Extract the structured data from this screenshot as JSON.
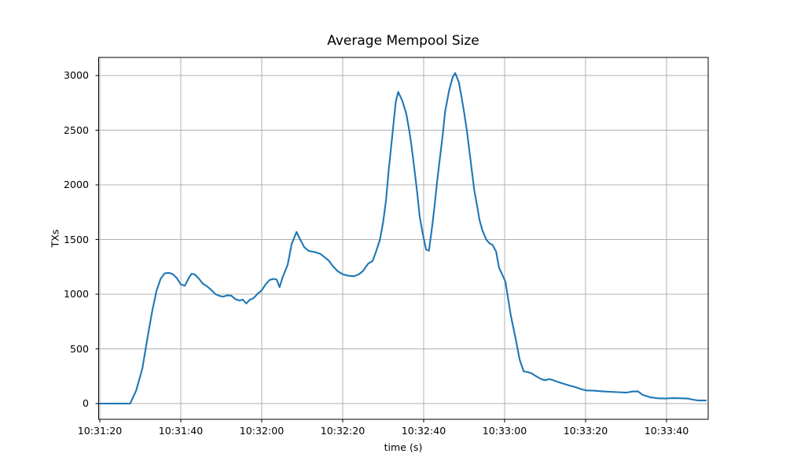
{
  "figure": {
    "title": "Average Mempool Size",
    "xlabel": "time (s)",
    "ylabel": "TXs"
  },
  "chart_data": {
    "type": "line",
    "title": "Average Mempool Size",
    "xlabel": "time (s)",
    "ylabel": "TXs",
    "grid": true,
    "legend_position": "none",
    "line_color": "#1f77b4",
    "grid_color": "#b0b0b0",
    "background_color": "#ffffff",
    "x_axis": {
      "tick_labels": [
        "10:31:20",
        "10:31:40",
        "10:32:00",
        "10:32:20",
        "10:32:40",
        "10:33:00",
        "10:33:20",
        "10:33:40"
      ],
      "tick_seconds_after_start": [
        0,
        20,
        40,
        60,
        80,
        100,
        120,
        140
      ],
      "range_seconds_after_start": [
        -0.4,
        150.3
      ],
      "start_time": "10:31:20"
    },
    "y_axis": {
      "ticks": [
        0,
        500,
        1000,
        1500,
        2000,
        2500,
        3000
      ],
      "range": [
        -150,
        3170
      ]
    },
    "series": [
      {
        "name": "average mempool size",
        "color": "#1f77b4",
        "points_seconds_vs_txs": [
          [
            -0.4,
            0
          ],
          [
            2,
            0
          ],
          [
            4,
            0
          ],
          [
            6,
            0
          ],
          [
            7.5,
            0
          ],
          [
            9,
            120
          ],
          [
            10.5,
            320
          ],
          [
            12,
            650
          ],
          [
            13,
            855
          ],
          [
            14,
            1030
          ],
          [
            15,
            1140
          ],
          [
            16,
            1190
          ],
          [
            17,
            1196
          ],
          [
            18,
            1184
          ],
          [
            19,
            1148
          ],
          [
            20,
            1090
          ],
          [
            21,
            1078
          ],
          [
            22,
            1150
          ],
          [
            22.7,
            1188
          ],
          [
            23.5,
            1180
          ],
          [
            24.5,
            1140
          ],
          [
            25.5,
            1095
          ],
          [
            26.5,
            1072
          ],
          [
            27.5,
            1040
          ],
          [
            28.5,
            1002
          ],
          [
            29.5,
            985
          ],
          [
            30.5,
            978
          ],
          [
            31.5,
            990
          ],
          [
            32.5,
            986
          ],
          [
            33.5,
            955
          ],
          [
            34.5,
            942
          ],
          [
            35.3,
            950
          ],
          [
            36.2,
            915
          ],
          [
            37,
            948
          ],
          [
            38,
            965
          ],
          [
            39,
            1005
          ],
          [
            40,
            1035
          ],
          [
            41,
            1092
          ],
          [
            42,
            1132
          ],
          [
            43,
            1140
          ],
          [
            43.7,
            1133
          ],
          [
            44.4,
            1065
          ],
          [
            45.2,
            1160
          ],
          [
            46.4,
            1270
          ],
          [
            47.4,
            1460
          ],
          [
            48.6,
            1570
          ],
          [
            49.5,
            1500
          ],
          [
            50.5,
            1430
          ],
          [
            51.6,
            1396
          ],
          [
            53,
            1386
          ],
          [
            54.5,
            1368
          ],
          [
            55.8,
            1330
          ],
          [
            56.6,
            1305
          ],
          [
            57.5,
            1260
          ],
          [
            58.7,
            1212
          ],
          [
            60,
            1182
          ],
          [
            61.5,
            1168
          ],
          [
            62.8,
            1164
          ],
          [
            64,
            1182
          ],
          [
            65,
            1212
          ],
          [
            66.3,
            1280
          ],
          [
            67.4,
            1304
          ],
          [
            68.3,
            1396
          ],
          [
            69.2,
            1500
          ],
          [
            70,
            1662
          ],
          [
            70.7,
            1858
          ],
          [
            71.4,
            2148
          ],
          [
            72,
            2360
          ],
          [
            72.6,
            2578
          ],
          [
            73.1,
            2758
          ],
          [
            73.7,
            2850
          ],
          [
            74.7,
            2772
          ],
          [
            75.7,
            2650
          ],
          [
            76.4,
            2505
          ],
          [
            77,
            2360
          ],
          [
            77.7,
            2145
          ],
          [
            78.4,
            1928
          ],
          [
            79,
            1712
          ],
          [
            79.8,
            1548
          ],
          [
            80.6,
            1408
          ],
          [
            81.3,
            1398
          ],
          [
            82,
            1590
          ],
          [
            82.7,
            1808
          ],
          [
            83.3,
            2022
          ],
          [
            84,
            2240
          ],
          [
            84.7,
            2455
          ],
          [
            85.3,
            2670
          ],
          [
            86.3,
            2865
          ],
          [
            87.2,
            2988
          ],
          [
            87.8,
            3022
          ],
          [
            88.7,
            2938
          ],
          [
            89.3,
            2815
          ],
          [
            90,
            2662
          ],
          [
            90.7,
            2490
          ],
          [
            91.3,
            2310
          ],
          [
            91.9,
            2130
          ],
          [
            92.5,
            1950
          ],
          [
            93.2,
            1808
          ],
          [
            93.8,
            1678
          ],
          [
            94.5,
            1585
          ],
          [
            95.5,
            1498
          ],
          [
            96.3,
            1465
          ],
          [
            97,
            1452
          ],
          [
            97.9,
            1390
          ],
          [
            98.6,
            1245
          ],
          [
            100.2,
            1116
          ],
          [
            101.5,
            812
          ],
          [
            102.7,
            598
          ],
          [
            103.7,
            403
          ],
          [
            104.7,
            295
          ],
          [
            105.7,
            288
          ],
          [
            106.6,
            278
          ],
          [
            107.6,
            254
          ],
          [
            109,
            224
          ],
          [
            110,
            214
          ],
          [
            111,
            224
          ],
          [
            112,
            214
          ],
          [
            113.3,
            196
          ],
          [
            114.7,
            180
          ],
          [
            116,
            165
          ],
          [
            117.5,
            150
          ],
          [
            119,
            130
          ],
          [
            120.2,
            120
          ],
          [
            122,
            118
          ],
          [
            124,
            112
          ],
          [
            126,
            108
          ],
          [
            128,
            104
          ],
          [
            130,
            100
          ],
          [
            131.6,
            110
          ],
          [
            132.9,
            112
          ],
          [
            134.1,
            80
          ],
          [
            135.9,
            58
          ],
          [
            137.8,
            48
          ],
          [
            139.6,
            46
          ],
          [
            141.7,
            50
          ],
          [
            143.7,
            48
          ],
          [
            145.3,
            45
          ],
          [
            146.5,
            36
          ],
          [
            147.8,
            28
          ],
          [
            149.7,
            28
          ]
        ]
      }
    ]
  }
}
